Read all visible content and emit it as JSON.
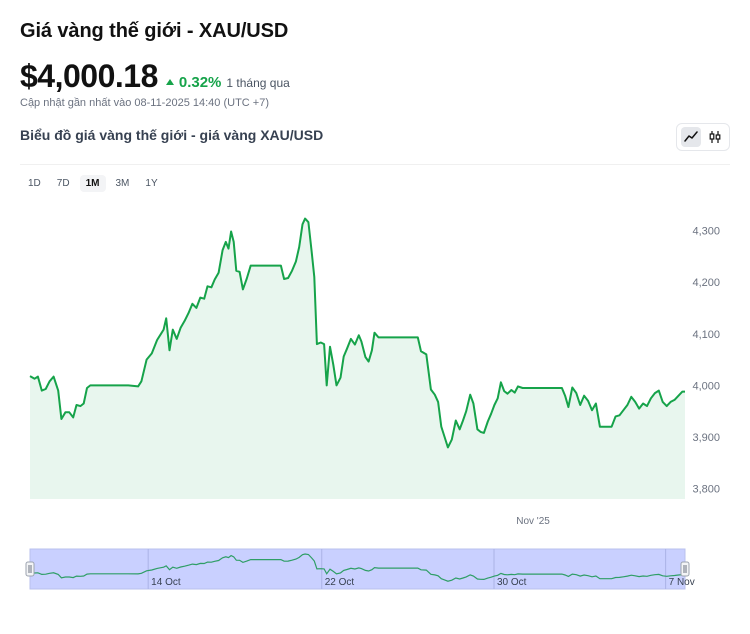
{
  "header": {
    "title": "Giá vàng thế giới - XAU/USD",
    "price": "$4,000.18",
    "change_pct": "0.32%",
    "change_period": "1 tháng qua",
    "updated": "Cập nhật gần nhất vào 08-11-2025 14:40 (UTC +7)",
    "chart_title": "Biểu đồ giá vàng thế giới - giá vàng XAU/USD"
  },
  "chart_type_toggle": {
    "options": [
      "line-chart-icon",
      "candlestick-icon"
    ],
    "selected": "line-chart-icon"
  },
  "ranges": [
    "1D",
    "7D",
    "1M",
    "3M",
    "1Y"
  ],
  "selected_range": "1M",
  "colors": {
    "accent": "#16a34a",
    "line": "#16a34a",
    "area": "#e8f6ee",
    "navigator_fill": "#c9d0ff",
    "navigator_line": "#2f9e66"
  },
  "chart_data": {
    "type": "area",
    "title": "",
    "xlabel": "",
    "ylabel": "",
    "ylim": [
      3780,
      4330
    ],
    "yticks": [
      3800,
      3900,
      4000,
      4100,
      4200,
      4300
    ],
    "ytick_labels": [
      "3,800",
      "3,900",
      "4,000",
      "4,100",
      "4,200",
      "4,300"
    ],
    "xtick_labels": [
      {
        "label": "Nov '25",
        "t": 0.768
      }
    ],
    "navigator_ticks": [
      {
        "label": "14 Oct",
        "t": 0.185
      },
      {
        "label": "22 Oct",
        "t": 0.45
      },
      {
        "label": "30 Oct",
        "t": 0.713
      },
      {
        "label": "7 Nov",
        "t": 0.975
      }
    ],
    "series": [
      {
        "points": [
          [
            0.0,
            4018
          ],
          [
            0.007,
            4013
          ],
          [
            0.012,
            4017
          ],
          [
            0.018,
            3990
          ],
          [
            0.024,
            3993
          ],
          [
            0.03,
            4008
          ],
          [
            0.036,
            4017
          ],
          [
            0.043,
            3990
          ],
          [
            0.048,
            3935
          ],
          [
            0.054,
            3948
          ],
          [
            0.06,
            3948
          ],
          [
            0.066,
            3938
          ],
          [
            0.071,
            3962
          ],
          [
            0.077,
            3960
          ],
          [
            0.082,
            3965
          ],
          [
            0.087,
            3995
          ],
          [
            0.092,
            4000
          ],
          [
            0.1,
            4000
          ],
          [
            0.15,
            4000
          ],
          [
            0.165,
            3998
          ],
          [
            0.17,
            4008
          ],
          [
            0.178,
            4050
          ],
          [
            0.186,
            4062
          ],
          [
            0.194,
            4088
          ],
          [
            0.2,
            4100
          ],
          [
            0.204,
            4108
          ],
          [
            0.208,
            4130
          ],
          [
            0.213,
            4068
          ],
          [
            0.218,
            4108
          ],
          [
            0.224,
            4090
          ],
          [
            0.23,
            4112
          ],
          [
            0.236,
            4125
          ],
          [
            0.242,
            4140
          ],
          [
            0.248,
            4158
          ],
          [
            0.254,
            4150
          ],
          [
            0.26,
            4170
          ],
          [
            0.266,
            4168
          ],
          [
            0.271,
            4192
          ],
          [
            0.277,
            4190
          ],
          [
            0.282,
            4205
          ],
          [
            0.288,
            4218
          ],
          [
            0.294,
            4262
          ],
          [
            0.299,
            4278
          ],
          [
            0.303,
            4265
          ],
          [
            0.307,
            4298
          ],
          [
            0.311,
            4278
          ],
          [
            0.315,
            4222
          ],
          [
            0.32,
            4220
          ],
          [
            0.325,
            4186
          ],
          [
            0.331,
            4207
          ],
          [
            0.337,
            4232
          ],
          [
            0.35,
            4232
          ],
          [
            0.37,
            4232
          ],
          [
            0.378,
            4232
          ],
          [
            0.383,
            4232
          ],
          [
            0.388,
            4206
          ],
          [
            0.394,
            4208
          ],
          [
            0.4,
            4222
          ],
          [
            0.406,
            4240
          ],
          [
            0.411,
            4268
          ],
          [
            0.416,
            4312
          ],
          [
            0.42,
            4323
          ],
          [
            0.425,
            4316
          ],
          [
            0.43,
            4260
          ],
          [
            0.434,
            4210
          ],
          [
            0.438,
            4080
          ],
          [
            0.444,
            4083
          ],
          [
            0.449,
            4080
          ],
          [
            0.453,
            4000
          ],
          [
            0.458,
            4075
          ],
          [
            0.463,
            4040
          ],
          [
            0.468,
            4000
          ],
          [
            0.474,
            4015
          ],
          [
            0.479,
            4056
          ],
          [
            0.484,
            4071
          ],
          [
            0.49,
            4090
          ],
          [
            0.496,
            4079
          ],
          [
            0.502,
            4097
          ],
          [
            0.506,
            4085
          ],
          [
            0.512,
            4055
          ],
          [
            0.517,
            4046
          ],
          [
            0.522,
            4068
          ],
          [
            0.526,
            4102
          ],
          [
            0.532,
            4093
          ],
          [
            0.54,
            4093
          ],
          [
            0.58,
            4093
          ],
          [
            0.592,
            4093
          ],
          [
            0.597,
            4066
          ],
          [
            0.605,
            4060
          ],
          [
            0.612,
            3992
          ],
          [
            0.618,
            3982
          ],
          [
            0.623,
            3968
          ],
          [
            0.628,
            3920
          ],
          [
            0.633,
            3900
          ],
          [
            0.638,
            3880
          ],
          [
            0.644,
            3895
          ],
          [
            0.65,
            3932
          ],
          [
            0.656,
            3915
          ],
          [
            0.661,
            3932
          ],
          [
            0.666,
            3950
          ],
          [
            0.672,
            3982
          ],
          [
            0.677,
            3965
          ],
          [
            0.683,
            3915
          ],
          [
            0.688,
            3910
          ],
          [
            0.693,
            3908
          ],
          [
            0.699,
            3930
          ],
          [
            0.704,
            3945
          ],
          [
            0.709,
            3962
          ],
          [
            0.714,
            3975
          ],
          [
            0.719,
            4006
          ],
          [
            0.724,
            3989
          ],
          [
            0.729,
            3984
          ],
          [
            0.735,
            3991
          ],
          [
            0.74,
            3986
          ],
          [
            0.745,
            3998
          ],
          [
            0.752,
            3995
          ],
          [
            0.76,
            3995
          ],
          [
            0.8,
            3995
          ],
          [
            0.812,
            3995
          ],
          [
            0.817,
            3980
          ],
          [
            0.822,
            3958
          ],
          [
            0.828,
            3996
          ],
          [
            0.834,
            3985
          ],
          [
            0.84,
            3962
          ],
          [
            0.846,
            3980
          ],
          [
            0.852,
            3970
          ],
          [
            0.858,
            3952
          ],
          [
            0.864,
            3965
          ],
          [
            0.87,
            3920
          ],
          [
            0.876,
            3920
          ],
          [
            0.882,
            3920
          ],
          [
            0.888,
            3920
          ],
          [
            0.894,
            3940
          ],
          [
            0.9,
            3942
          ],
          [
            0.906,
            3952
          ],
          [
            0.912,
            3962
          ],
          [
            0.918,
            3978
          ],
          [
            0.924,
            3968
          ],
          [
            0.93,
            3955
          ],
          [
            0.936,
            3965
          ],
          [
            0.942,
            3960
          ],
          [
            0.948,
            3975
          ],
          [
            0.954,
            3985
          ],
          [
            0.96,
            3990
          ],
          [
            0.966,
            3968
          ],
          [
            0.972,
            3960
          ],
          [
            0.978,
            3968
          ],
          [
            0.984,
            3972
          ],
          [
            0.99,
            3980
          ],
          [
            0.996,
            3988
          ],
          [
            1.0,
            3988
          ]
        ]
      }
    ]
  }
}
